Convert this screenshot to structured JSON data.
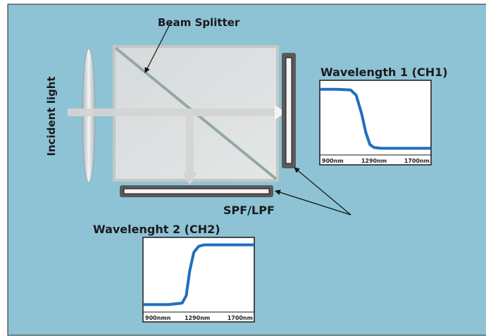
{
  "labels": {
    "beam_splitter": "Beam Splitter",
    "incident_light": "Incident light",
    "ch1_title": "Wavelength 1 (CH1)",
    "ch2_title": "Wavelenght 2 (CH2)",
    "filter": "SPF/LPF"
  },
  "colors": {
    "background": "#8ec3d6",
    "curve": "#1f6fbf",
    "frame": "#1a1a1a",
    "beam": "#d4d4d4"
  },
  "chart_data": [
    {
      "type": "line",
      "title": "Wavelength 1 (CH1)",
      "x_tick_labels": [
        "900nm",
        "1290nm",
        "1700nm"
      ],
      "x_ticks_nm": [
        900,
        1290,
        1700
      ],
      "xlim": [
        900,
        1700
      ],
      "ylim": [
        0,
        1
      ],
      "grid": false,
      "series": [
        {
          "x": [
            900,
            1020,
            1120,
            1160,
            1200,
            1230,
            1260,
            1290,
            1340,
            1700
          ],
          "y": [
            0.88,
            0.88,
            0.87,
            0.8,
            0.55,
            0.3,
            0.14,
            0.1,
            0.09,
            0.09
          ]
        }
      ]
    },
    {
      "type": "line",
      "title": "Wavelenght 2 (CH2)",
      "x_tick_labels": [
        "900nmn",
        "1290nm",
        "1700nm"
      ],
      "x_ticks_nm": [
        900,
        1290,
        1700
      ],
      "xlim": [
        900,
        1700
      ],
      "ylim": [
        0,
        1
      ],
      "grid": false,
      "series": [
        {
          "x": [
            900,
            1080,
            1180,
            1210,
            1235,
            1265,
            1300,
            1340,
            1700
          ],
          "y": [
            0.1,
            0.1,
            0.12,
            0.22,
            0.55,
            0.8,
            0.88,
            0.9,
            0.9
          ]
        }
      ]
    }
  ]
}
